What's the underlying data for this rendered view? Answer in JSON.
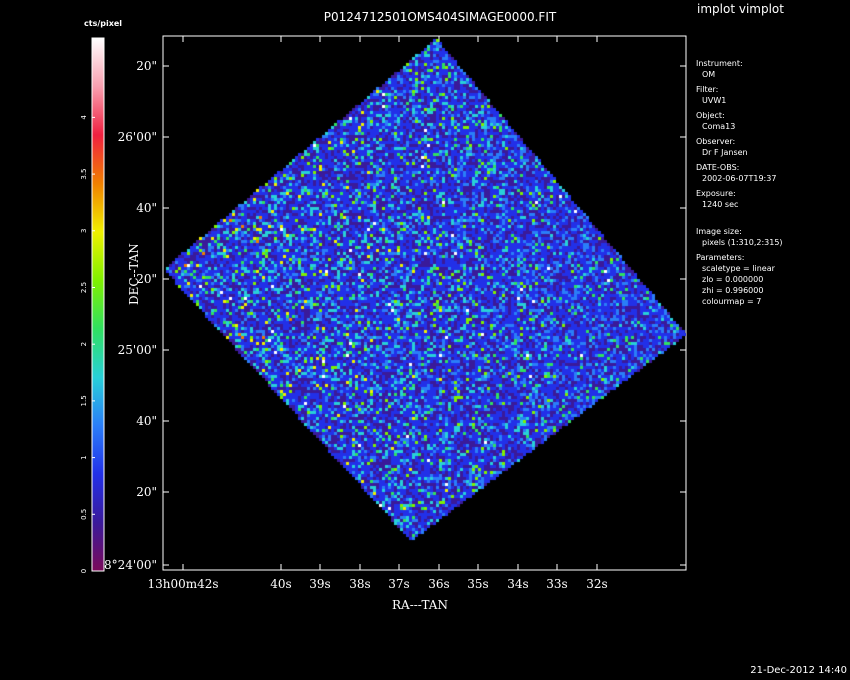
{
  "window": {
    "app_title": "implot vimplot",
    "timestamp": "21-Dec-2012 14:40"
  },
  "chart_data": {
    "type": "heatmap",
    "title": "P0124712501OMS404SIMAGE0000.FIT",
    "xlabel": "RA---TAN",
    "ylabel": "DEC--TAN",
    "x_ticks": [
      "13h00m42s",
      "40s",
      "39s",
      "38s",
      "37s",
      "36s",
      "35s",
      "34s",
      "33s",
      "32s"
    ],
    "y_ticks": [
      "8°24'00\"",
      "20\"",
      "40\"",
      "25'00\"",
      "20\"",
      "40\"",
      "26'00\"",
      "20\""
    ],
    "colorbar": {
      "label": "cts/pixel",
      "ticks": [
        "0",
        "0.5",
        "1",
        "1.5",
        "2",
        "2.5",
        "3",
        "3.5",
        "4"
      ],
      "range": [
        0,
        4.7
      ]
    },
    "colormap_stops": [
      "#7a0a5a",
      "#3a1a9a",
      "#2230e8",
      "#2a7ef8",
      "#28d0d8",
      "#30e060",
      "#80f000",
      "#f0f000",
      "#f08000",
      "#f02040",
      "#f8a0b0",
      "#ffffff"
    ],
    "image_description": "rotated square detector footprint of noisy pixel counts, mean ~0.7, brighter toward the left corner"
  },
  "metadata": [
    {
      "key": "Instrument:",
      "value": "OM"
    },
    {
      "key": "Filter:",
      "value": "UVW1"
    },
    {
      "key": "Object:",
      "value": "Coma13"
    },
    {
      "key": "Observer:",
      "value": "Dr F Jansen"
    },
    {
      "key": "DATE-OBS:",
      "value": "2002-06-07T19:37"
    },
    {
      "key": "Exposure:",
      "value": "1240 sec"
    },
    {
      "key": "Image size:",
      "value": "pixels (1:310,2:315)"
    },
    {
      "key": "Parameters:",
      "lines": [
        "scaletype = linear",
        "zlo = 0.000000",
        "zhi = 0.996000",
        "colourmap =    7"
      ]
    }
  ]
}
